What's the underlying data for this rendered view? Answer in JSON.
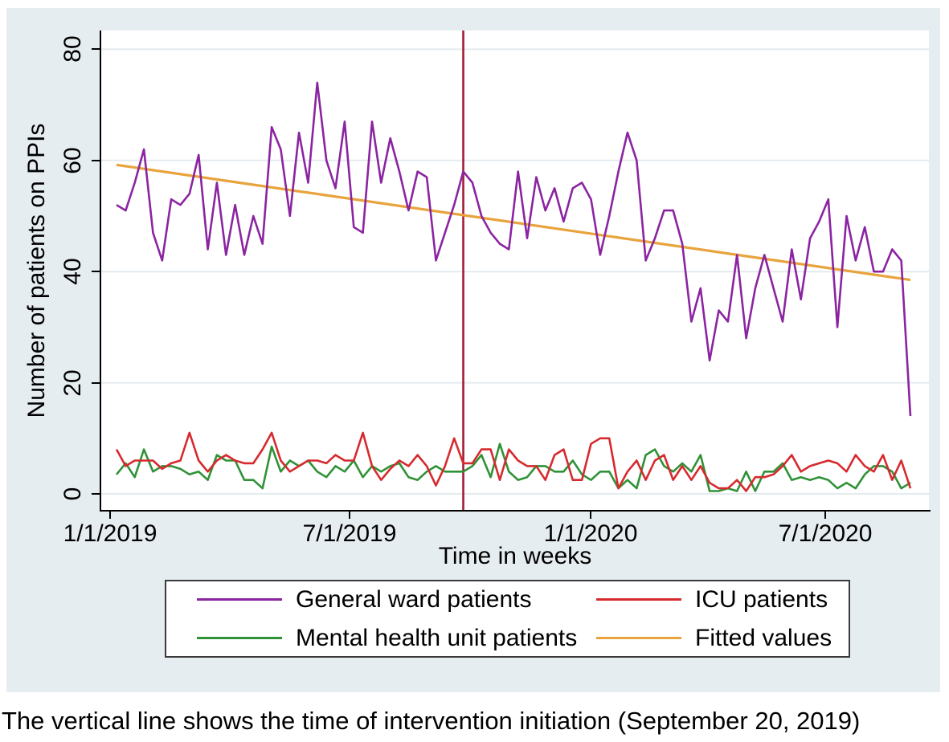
{
  "figure": {
    "y_axis": {
      "title": "Number of patients on PPIs",
      "ticks": [
        "0",
        "20",
        "40",
        "60",
        "80"
      ]
    },
    "x_axis": {
      "title": "Time in weeks",
      "tick_labels": [
        "1/1/2019",
        "7/1/2019",
        "1/1/2020",
        "7/1/2020"
      ]
    }
  },
  "legend": {
    "entries": [
      {
        "label": "General ward patients",
        "color": "#8b24a1"
      },
      {
        "label": "ICU patients",
        "color": "#d62a2e"
      },
      {
        "label": "Mental health unit patients",
        "color": "#2f9237"
      },
      {
        "label": "Fitted values",
        "color": "#e8a33c"
      }
    ]
  },
  "caption": "The vertical line shows the time of intervention initiation (September 20, 2019)",
  "chart_data": {
    "type": "line",
    "xlabel": "Time in weeks",
    "ylabel": "Number of patients on PPIs",
    "x_unit": "weekly observations, week 0 = 1/1/2019, 88 weeks total",
    "x_tick_labels": [
      "1/1/2019",
      "7/1/2019",
      "1/1/2020",
      "7/1/2020"
    ],
    "y_ticks": [
      0,
      20,
      40,
      60,
      80
    ],
    "ylim": [
      0,
      80
    ],
    "grid": "horizontal light gridlines at y ticks",
    "legend_position": "bottom box, two columns",
    "series": [
      {
        "name": "General ward patients",
        "color": "#8b24a1",
        "values": [
          52,
          51,
          56,
          62,
          47,
          42,
          53,
          52,
          54,
          61,
          44,
          56,
          43,
          52,
          43,
          50,
          45,
          66,
          62,
          50,
          65,
          56,
          74,
          60,
          55,
          67,
          48,
          47,
          67,
          56,
          64,
          58,
          51,
          58,
          57,
          42,
          47,
          52,
          58,
          56,
          50,
          47,
          45,
          44,
          58,
          46,
          57,
          51,
          55,
          49,
          55,
          56,
          53,
          43,
          50,
          58,
          65,
          60,
          42,
          46,
          51,
          51,
          45,
          31,
          37,
          24,
          33,
          31,
          43,
          28,
          37,
          43,
          37,
          31,
          44,
          35,
          46,
          49,
          53,
          30,
          50,
          42,
          48,
          40,
          40,
          44,
          42,
          14
        ]
      },
      {
        "name": "ICU patients",
        "color": "#d62a2e",
        "values": [
          8,
          5,
          6,
          6,
          6,
          4.5,
          5.5,
          6,
          11,
          6,
          4,
          6,
          7,
          6,
          5.5,
          5.5,
          8,
          11,
          6,
          4,
          5,
          6,
          6,
          5.5,
          7,
          6,
          6,
          11,
          5,
          2.5,
          4.5,
          6,
          5,
          7,
          5,
          1.5,
          5,
          10,
          5.5,
          5.5,
          8,
          8,
          2.5,
          8,
          6,
          5,
          5,
          2.5,
          7,
          8,
          2.5,
          2.5,
          9,
          10,
          10,
          1,
          4,
          6,
          2.5,
          6,
          7,
          2.5,
          5,
          2.5,
          5,
          2,
          1,
          1,
          2.5,
          0.5,
          3,
          3,
          3.5,
          5,
          7,
          4,
          5,
          5.5,
          6,
          5.5,
          4,
          7,
          5,
          4,
          7,
          2.5,
          6,
          1
        ]
      },
      {
        "name": "Mental health unit patients",
        "color": "#2f9237",
        "values": [
          3.5,
          5.5,
          3,
          8,
          4,
          5,
          5,
          4.5,
          3.5,
          4,
          2.5,
          7,
          6,
          6,
          2.5,
          2.5,
          1,
          8.5,
          4,
          6,
          5,
          6,
          4,
          3,
          5,
          4,
          6,
          3,
          5,
          4,
          5,
          5.5,
          3,
          2.5,
          4,
          5,
          4,
          4,
          4,
          5,
          7,
          3,
          9,
          4,
          2.5,
          3,
          5,
          5,
          4,
          4,
          6,
          3.5,
          2.5,
          4,
          4,
          1,
          2.5,
          1,
          7,
          8,
          5,
          4,
          5.5,
          4,
          7,
          0.5,
          0.5,
          1,
          0.5,
          4,
          0.5,
          4,
          4,
          5.5,
          2.5,
          3,
          2.5,
          3,
          2.5,
          1,
          2,
          1,
          3.5,
          5,
          5,
          4,
          1,
          2
        ]
      },
      {
        "name": "Fitted values",
        "color": "#e8a33c",
        "trend": {
          "x": [
            0,
            87
          ],
          "y": [
            59.2,
            38.5
          ]
        }
      }
    ],
    "vline": {
      "week": 38,
      "date": "September 20, 2019",
      "color": "#a31e35"
    }
  }
}
